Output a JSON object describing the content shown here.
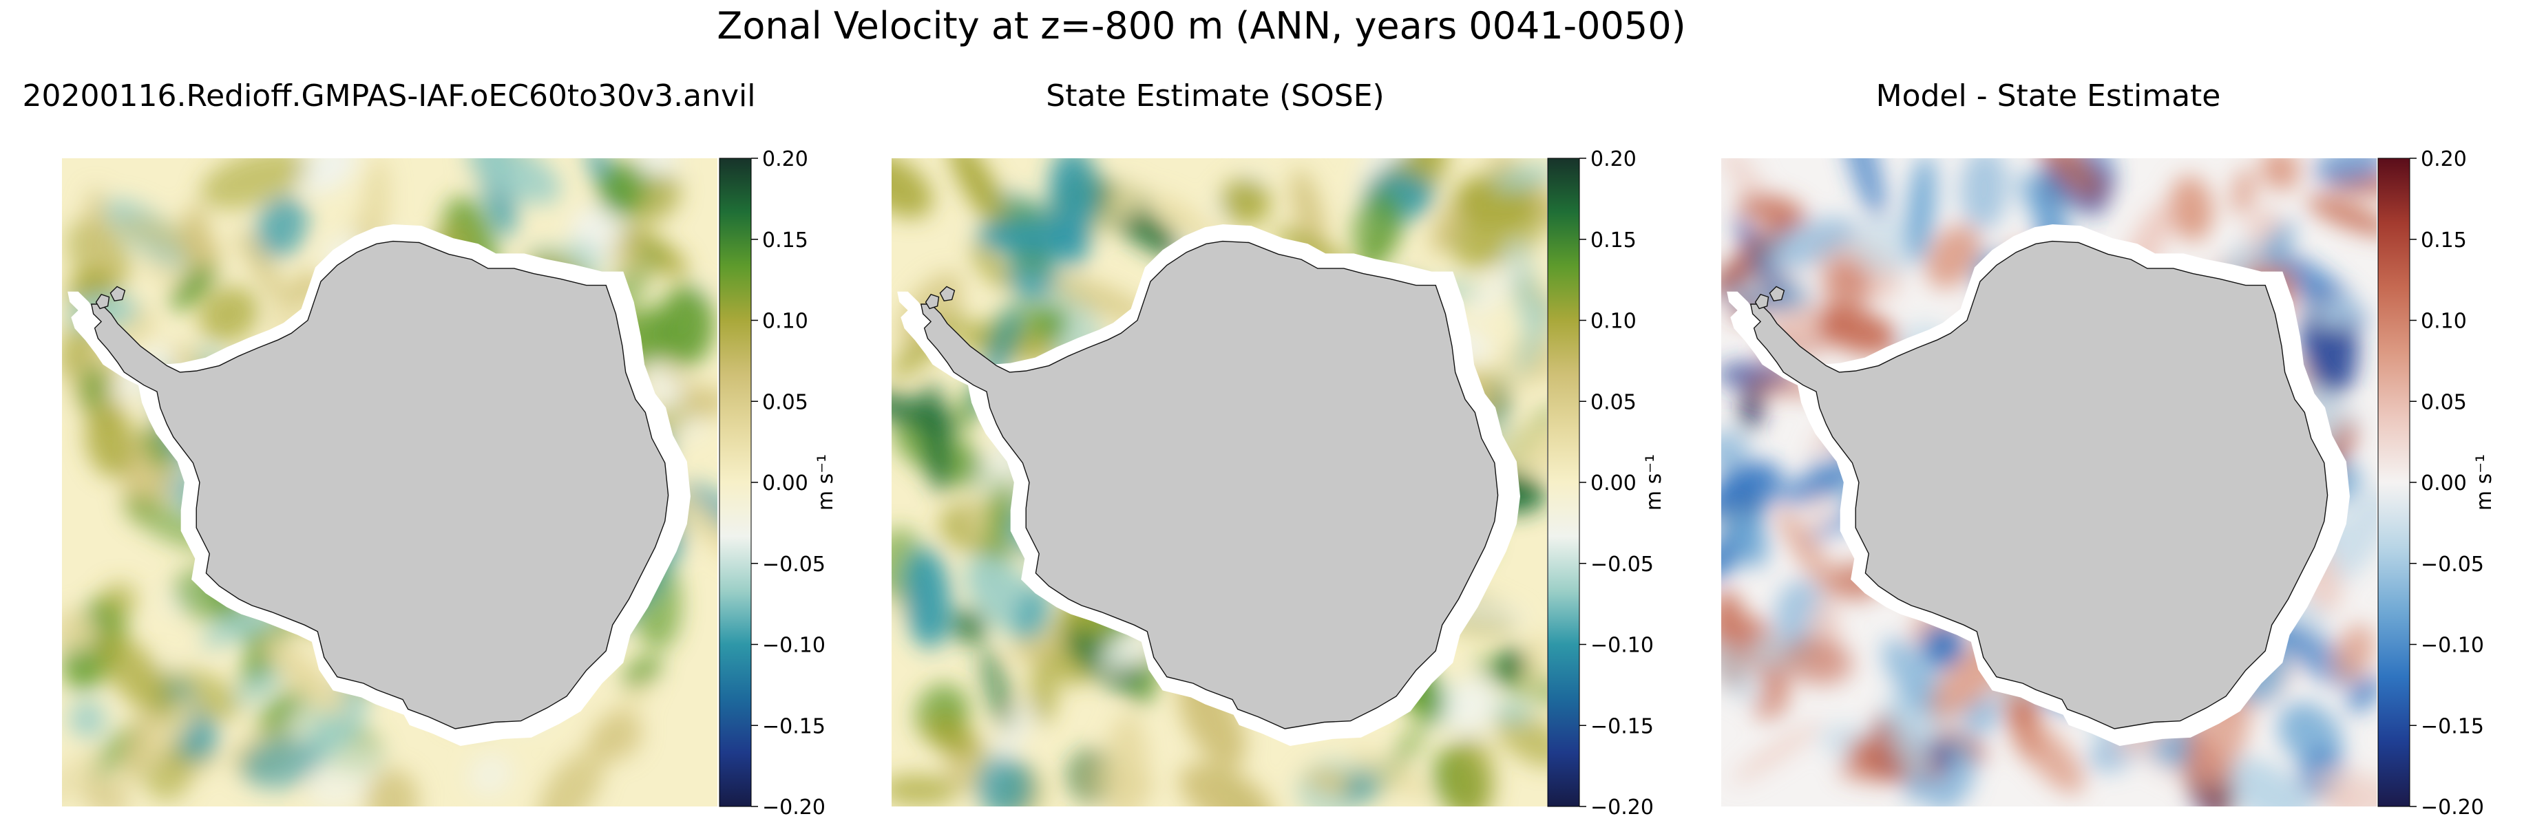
{
  "figure": {
    "suptitle": "Zonal Velocity at z=-800 m (ANN, years 0041-0050)"
  },
  "colormaps": {
    "yellow_green": [
      "#161b46",
      "#1e3a8a",
      "#1d6a9c",
      "#2e97a8",
      "#9ccfc7",
      "#f0f3ee",
      "#f7f0c8",
      "#e5d99e",
      "#cfc076",
      "#a9a83a",
      "#5e9b2c",
      "#1f6f36",
      "#17332a"
    ],
    "red_blue": [
      "#1b1a4a",
      "#1f3f94",
      "#2f74c0",
      "#6fa8d4",
      "#b8d5e6",
      "#f5f3f2",
      "#ecc8be",
      "#dc9a83",
      "#c66a52",
      "#a43b2f",
      "#5a0d1a"
    ]
  },
  "land_color": "#c8c8c8",
  "chart_data": [
    {
      "type": "heatmap",
      "title": "20200116.Redioff.GMPAS-IAF.oEC60to30v3.anvil",
      "colormap": "yellow_green",
      "colorbar": {
        "label": "m s⁻¹",
        "range": [
          -0.2,
          0.2
        ],
        "ticks": [
          "0.20",
          "0.15",
          "0.10",
          "0.05",
          "0.00",
          "−0.05",
          "−0.10",
          "−0.15",
          "−0.20"
        ]
      }
    },
    {
      "type": "heatmap",
      "title": "State Estimate (SOSE)",
      "colormap": "yellow_green",
      "colorbar": {
        "label": "m s⁻¹",
        "range": [
          -0.2,
          0.2
        ],
        "ticks": [
          "0.20",
          "0.15",
          "0.10",
          "0.05",
          "0.00",
          "−0.05",
          "−0.10",
          "−0.15",
          "−0.20"
        ]
      }
    },
    {
      "type": "heatmap",
      "title": "Model - State Estimate",
      "colormap": "red_blue",
      "colorbar": {
        "label": "m s⁻¹",
        "range": [
          -0.2,
          0.2
        ],
        "ticks": [
          "0.20",
          "0.15",
          "0.10",
          "0.05",
          "0.00",
          "−0.05",
          "−0.10",
          "−0.15",
          "−0.20"
        ]
      }
    }
  ]
}
